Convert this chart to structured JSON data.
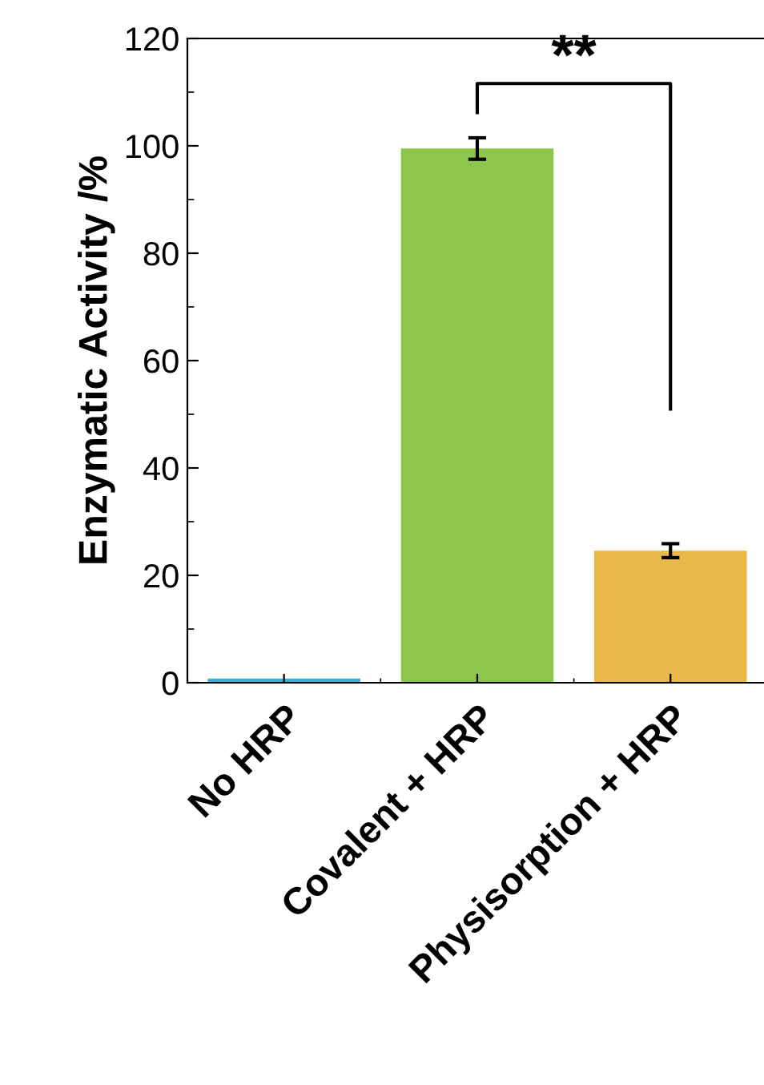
{
  "chart_data": {
    "type": "bar",
    "ylabel": "Enzymatic Activity /%",
    "categories": [
      "No HRP",
      "Covalent + HRP",
      "Physisorption + HRP"
    ],
    "values": [
      0.8,
      99.5,
      24.6
    ],
    "errors": [
      null,
      2,
      1.3
    ],
    "colors": [
      "#3aaed8",
      "#8cc64a",
      "#e8b84a"
    ],
    "ylim": [
      0,
      120
    ],
    "yticks": [
      0,
      20,
      40,
      60,
      80,
      100,
      120
    ],
    "annotations": [
      "**"
    ],
    "grid": false
  }
}
